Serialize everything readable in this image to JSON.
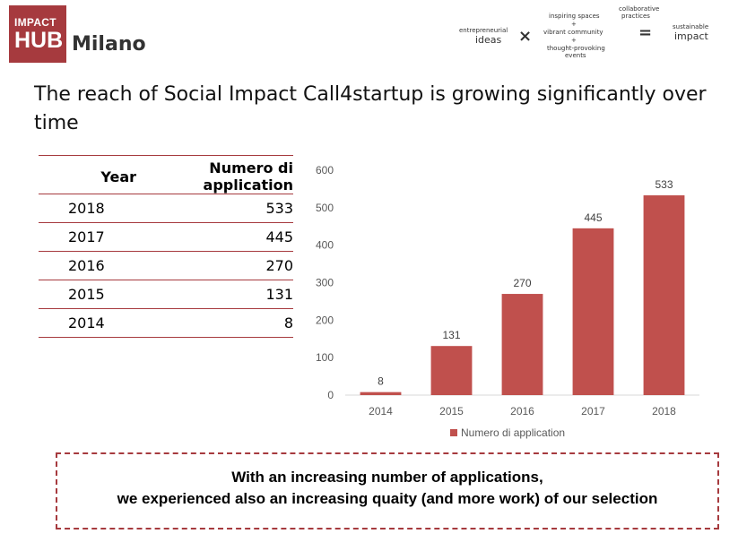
{
  "logo": {
    "line1": "IMPACT",
    "line2": "HUB",
    "city": "Milano"
  },
  "tagline": {
    "ideas_top": "entrepreneurial",
    "ideas": "ideas",
    "times": "×",
    "spaces": "inspiring spaces",
    "plus1": "+",
    "community": "vibrant community",
    "plus2": "+",
    "events_top": "thought-provoking",
    "events": "events",
    "practices_top": "collaborative",
    "practices": "practices",
    "equals": "=",
    "impact_top": "sustainable",
    "impact": "impact"
  },
  "headline": "The reach of Social Impact Call4startup is growing significantly over time",
  "table": {
    "headers": [
      "Year",
      "Numero di application"
    ],
    "rows": [
      [
        "2018",
        "533"
      ],
      [
        "2017",
        "445"
      ],
      [
        "2016",
        "270"
      ],
      [
        "2015",
        "131"
      ],
      [
        "2014",
        "8"
      ]
    ]
  },
  "chart_data": {
    "type": "bar",
    "categories": [
      "2014",
      "2015",
      "2016",
      "2017",
      "2018"
    ],
    "series": [
      {
        "name": "Numero di application",
        "values": [
          8,
          131,
          270,
          445,
          533
        ]
      }
    ],
    "ylim": [
      0,
      600
    ],
    "yticks": [
      0,
      100,
      200,
      300,
      400,
      500,
      600
    ],
    "grid": false,
    "legend": "bottom",
    "data_labels": true,
    "color": "#c0504d"
  },
  "callout": {
    "line1": "With an increasing number of applications,",
    "line2": "we experienced also an increasing quaity (and more work) of our selection"
  }
}
